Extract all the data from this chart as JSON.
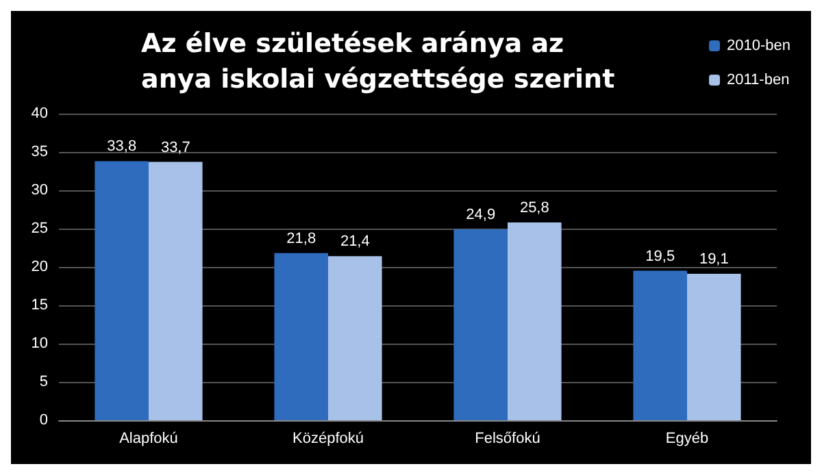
{
  "chart_data": {
    "type": "bar",
    "title": "Az élve születések aránya az anya iskolai végzettsége szerint",
    "categories": [
      "Alapfokú",
      "Középfokú",
      "Felsőfokú",
      "Egyéb"
    ],
    "series": [
      {
        "name": "2010-ben",
        "color": "#2f6cbd",
        "values": [
          33.8,
          21.8,
          24.9,
          19.5
        ],
        "value_labels": [
          "33,8",
          "21,8",
          "24,9",
          "19,5"
        ]
      },
      {
        "name": "2011-ben",
        "color": "#a7c1e8",
        "values": [
          33.7,
          21.4,
          25.8,
          19.1
        ],
        "value_labels": [
          "33,7",
          "21,4",
          "25,8",
          "19,1"
        ]
      }
    ],
    "ylim": [
      0,
      40
    ],
    "yticks": [
      0,
      5,
      10,
      15,
      20,
      25,
      30,
      35,
      40
    ],
    "grid": "y",
    "legend": "top right"
  }
}
